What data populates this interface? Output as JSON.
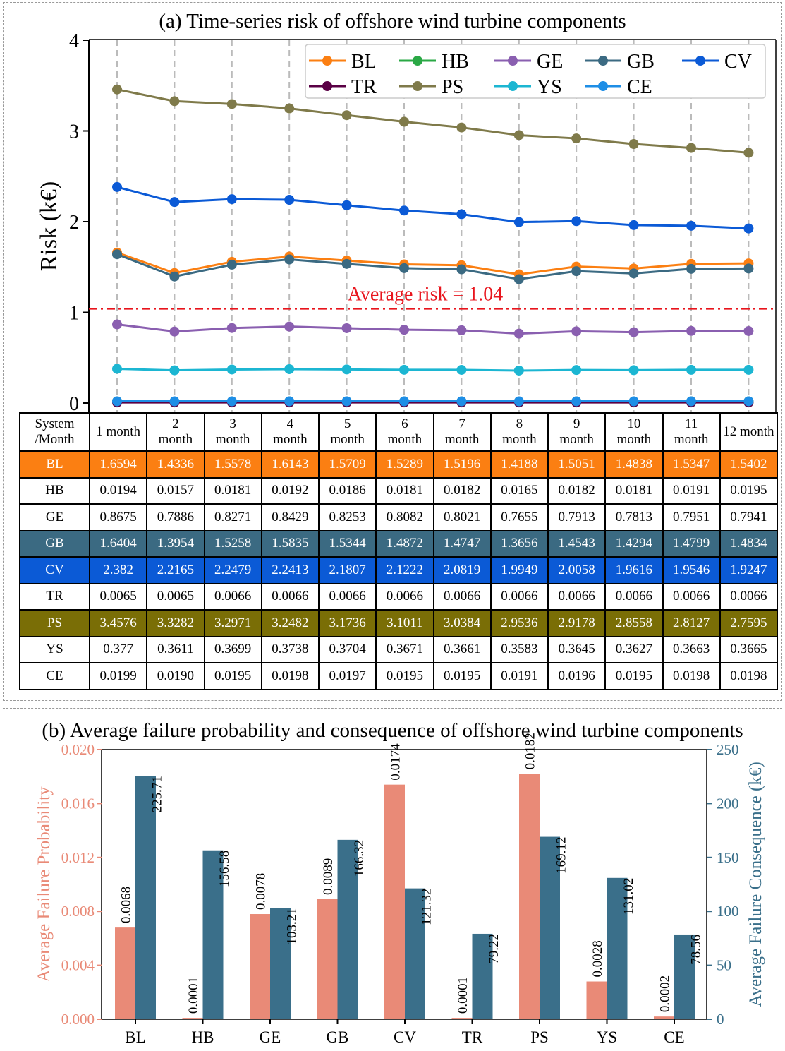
{
  "chart_data": [
    {
      "type": "line",
      "title": "(a) Time-series risk of offshore wind turbine components",
      "xlabel": "",
      "ylabel": "Risk (k€)",
      "ylim": [
        0,
        4
      ],
      "yticks": [
        "0",
        "1",
        "2",
        "3",
        "4"
      ],
      "grid": "vertical dashed",
      "legend": "top-right",
      "reference_line": {
        "value": 1.04,
        "label": "Average risk = 1.04",
        "color": "#e8141c"
      },
      "x": [
        1,
        2,
        3,
        4,
        5,
        6,
        7,
        8,
        9,
        10,
        11,
        12
      ],
      "series": [
        {
          "name": "BL",
          "color": "#fb7f12",
          "values": [
            1.6594,
            1.4336,
            1.5578,
            1.6143,
            1.5709,
            1.5289,
            1.5196,
            1.4188,
            1.5051,
            1.4838,
            1.5347,
            1.5402
          ]
        },
        {
          "name": "HB",
          "color": "#2aa845",
          "values": [
            0.0194,
            0.0157,
            0.0181,
            0.0192,
            0.0186,
            0.0181,
            0.0182,
            0.0165,
            0.0182,
            0.0181,
            0.0191,
            0.0195
          ]
        },
        {
          "name": "GE",
          "color": "#8a5fb0",
          "values": [
            0.8675,
            0.7886,
            0.8271,
            0.8429,
            0.8253,
            0.8082,
            0.8021,
            0.7655,
            0.7913,
            0.7813,
            0.7951,
            0.7941
          ]
        },
        {
          "name": "GB",
          "color": "#3b6a82",
          "values": [
            1.6404,
            1.3954,
            1.5258,
            1.5835,
            1.5344,
            1.4872,
            1.4747,
            1.3656,
            1.4543,
            1.4294,
            1.4799,
            1.4834
          ]
        },
        {
          "name": "CV",
          "color": "#0b5ad6",
          "values": [
            2.382,
            2.2165,
            2.2479,
            2.2413,
            2.1807,
            2.1222,
            2.0819,
            1.9949,
            2.0058,
            1.9616,
            1.9546,
            1.9247
          ]
        },
        {
          "name": "TR",
          "color": "#5a0045",
          "values": [
            0.0065,
            0.0065,
            0.0066,
            0.0066,
            0.0066,
            0.0066,
            0.0066,
            0.0066,
            0.0066,
            0.0066,
            0.0066,
            0.0066
          ]
        },
        {
          "name": "PS",
          "color": "#7f7a4a",
          "values": [
            3.4576,
            3.3282,
            3.2971,
            3.2482,
            3.1736,
            3.1011,
            3.0384,
            2.9536,
            2.9178,
            2.8558,
            2.8127,
            2.7595
          ]
        },
        {
          "name": "YS",
          "color": "#1cb6d2",
          "values": [
            0.377,
            0.3611,
            0.3699,
            0.3738,
            0.3704,
            0.3671,
            0.3661,
            0.3583,
            0.3645,
            0.3627,
            0.3663,
            0.3665
          ]
        },
        {
          "name": "CE",
          "color": "#1e8ee6",
          "values": [
            0.0199,
            0.019,
            0.0195,
            0.0198,
            0.0197,
            0.0195,
            0.0195,
            0.0191,
            0.0196,
            0.0195,
            0.0198,
            0.0198
          ]
        }
      ],
      "legend_order": [
        "BL",
        "HB",
        "GE",
        "GB",
        "CV",
        "TR",
        "PS",
        "YS",
        "CE"
      ]
    },
    {
      "type": "table",
      "header": [
        "System\n/Month",
        "1 month",
        "2\nmonth",
        "3\nmonth",
        "4\nmonth",
        "5\nmonth",
        "6\nmonth",
        "7\nmonth",
        "8\nmonth",
        "9\nmonth",
        "10\nmonth",
        "11\nmonth",
        "12 month"
      ],
      "rows": [
        {
          "label": "BL",
          "highlight": "orange",
          "cells": [
            "1.6594",
            "1.4336",
            "1.5578",
            "1.6143",
            "1.5709",
            "1.5289",
            "1.5196",
            "1.4188",
            "1.5051",
            "1.4838",
            "1.5347",
            "1.5402"
          ]
        },
        {
          "label": "HB",
          "highlight": "",
          "cells": [
            "0.0194",
            "0.0157",
            "0.0181",
            "0.0192",
            "0.0186",
            "0.0181",
            "0.0182",
            "0.0165",
            "0.0182",
            "0.0181",
            "0.0191",
            "0.0195"
          ]
        },
        {
          "label": "GE",
          "highlight": "",
          "cells": [
            "0.8675",
            "0.7886",
            "0.8271",
            "0.8429",
            "0.8253",
            "0.8082",
            "0.8021",
            "0.7655",
            "0.7913",
            "0.7813",
            "0.7951",
            "0.7941"
          ]
        },
        {
          "label": "GB",
          "highlight": "slate",
          "cells": [
            "1.6404",
            "1.3954",
            "1.5258",
            "1.5835",
            "1.5344",
            "1.4872",
            "1.4747",
            "1.3656",
            "1.4543",
            "1.4294",
            "1.4799",
            "1.4834"
          ]
        },
        {
          "label": "CV",
          "highlight": "blue",
          "cells": [
            "2.382",
            "2.2165",
            "2.2479",
            "2.2413",
            "2.1807",
            "2.1222",
            "2.0819",
            "1.9949",
            "2.0058",
            "1.9616",
            "1.9546",
            "1.9247"
          ]
        },
        {
          "label": "TR",
          "highlight": "",
          "cells": [
            "0.0065",
            "0.0065",
            "0.0066",
            "0.0066",
            "0.0066",
            "0.0066",
            "0.0066",
            "0.0066",
            "0.0066",
            "0.0066",
            "0.0066",
            "0.0066"
          ]
        },
        {
          "label": "PS",
          "highlight": "olive",
          "cells": [
            "3.4576",
            "3.3282",
            "3.2971",
            "3.2482",
            "3.1736",
            "3.1011",
            "3.0384",
            "2.9536",
            "2.9178",
            "2.8558",
            "2.8127",
            "2.7595"
          ]
        },
        {
          "label": "YS",
          "highlight": "",
          "cells": [
            "0.377",
            "0.3611",
            "0.3699",
            "0.3738",
            "0.3704",
            "0.3671",
            "0.3661",
            "0.3583",
            "0.3645",
            "0.3627",
            "0.3663",
            "0.3665"
          ]
        },
        {
          "label": "CE",
          "highlight": "",
          "cells": [
            "0.0199",
            "0.0190",
            "0.0195",
            "0.0198",
            "0.0197",
            "0.0195",
            "0.0195",
            "0.0191",
            "0.0196",
            "0.0195",
            "0.0198",
            "0.0198"
          ]
        }
      ]
    },
    {
      "type": "bar",
      "title": "(b) Average failure probability and consequence of offshore wind turbine components",
      "categories": [
        "BL",
        "HB",
        "GE",
        "GB",
        "CV",
        "TR",
        "PS",
        "YS",
        "CE"
      ],
      "ylabel_left": "Average Failure Probability",
      "ylabel_right": "Average Failure Consequence (k€)",
      "ylim_left": [
        0,
        0.02
      ],
      "ylim_right": [
        0,
        250
      ],
      "yticks_left": [
        "0.000",
        "0.004",
        "0.008",
        "0.012",
        "0.016",
        "0.020"
      ],
      "yticks_right": [
        "0",
        "50",
        "100",
        "150",
        "200",
        "250"
      ],
      "color_left": "#e98a77",
      "color_right": "#3a6f8a",
      "series": [
        {
          "axis": "left",
          "values": [
            0.0068,
            0.0001,
            0.0078,
            0.0089,
            0.0174,
            0.0001,
            0.0182,
            0.0028,
            0.0002
          ],
          "labels": [
            "0.0068",
            "0.0001",
            "0.0078",
            "0.0089",
            "0.0174",
            "0.0001",
            "0.0182",
            "0.0028",
            "0.0002"
          ]
        },
        {
          "axis": "right",
          "values": [
            225.71,
            156.58,
            103.21,
            166.32,
            121.32,
            79.22,
            169.12,
            131.02,
            78.56
          ],
          "labels": [
            "225.71",
            "156.58",
            "103.21",
            "166.32",
            "121.32",
            "79.22",
            "169.12",
            "131.02",
            "78.56"
          ]
        }
      ]
    }
  ]
}
